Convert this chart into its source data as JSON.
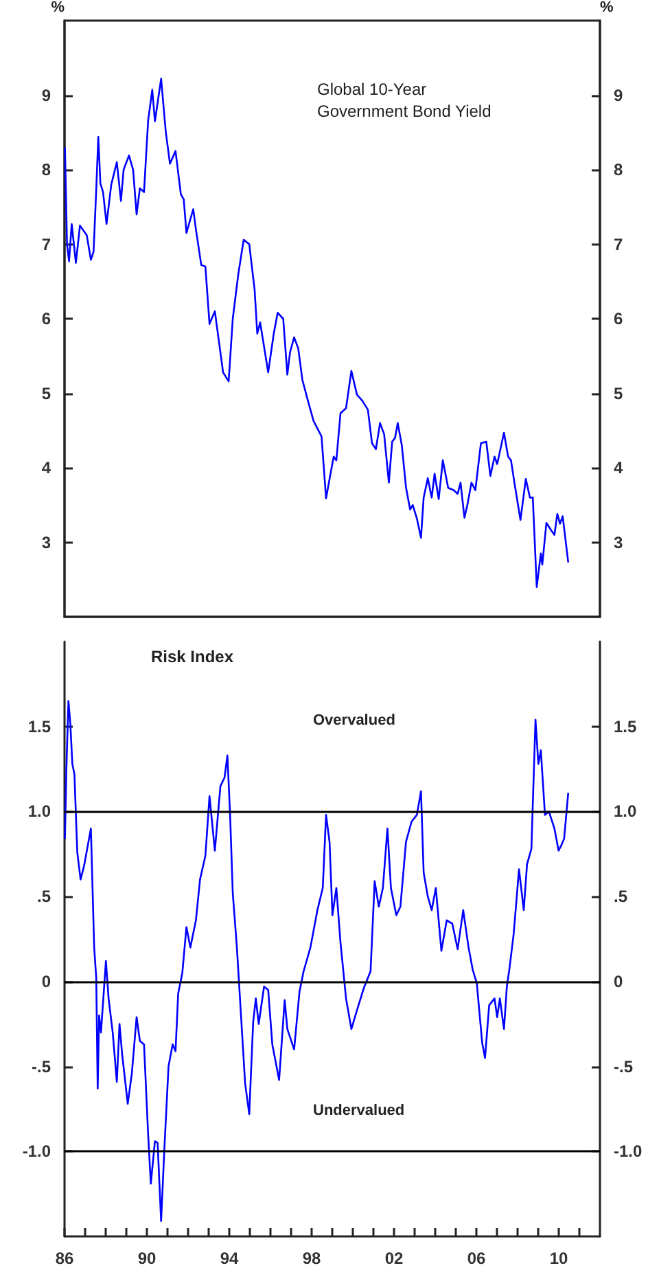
{
  "chart_data": [
    {
      "type": "line",
      "title": "Global 10-Year Government Bond Yield",
      "ylabel": "%",
      "y2label": "%",
      "xlim": [
        1986,
        2012
      ],
      "ylim": [
        2,
        10
      ],
      "yticks": [
        3,
        4,
        5,
        6,
        7,
        8,
        9
      ],
      "y2lim": [
        2,
        10
      ],
      "y2ticks": [
        3,
        4,
        5,
        6,
        7,
        8,
        9
      ],
      "tick_labels": "y",
      "marker": "none",
      "series": [
        {
          "color": "#0000ff",
          "x": [
            1986.02,
            1986.12,
            1986.22,
            1986.35,
            1986.55,
            1986.75,
            1987.08,
            1987.28,
            1987.41,
            1987.54,
            1987.64,
            1987.74,
            1987.87,
            1988.04,
            1988.27,
            1988.54,
            1988.74,
            1988.87,
            1989.13,
            1989.33,
            1989.5,
            1989.66,
            1989.86,
            1990.06,
            1990.26,
            1990.39,
            1990.69,
            1990.92,
            1991.12,
            1991.39,
            1991.65,
            1991.79,
            1991.92,
            1992.25,
            1992.38,
            1992.64,
            1992.84,
            1993.04,
            1993.3,
            1993.7,
            1993.97,
            1994.17,
            1994.44,
            1994.7,
            1994.97,
            1995.23,
            1995.36,
            1995.5,
            1995.89,
            1996.16,
            1996.35,
            1996.62,
            1996.82,
            1996.95,
            1997.15,
            1997.35,
            1997.55,
            1997.82,
            1998.09,
            1998.48,
            1998.7,
            1998.87,
            1999.07,
            1999.2,
            1999.4,
            1999.67,
            1999.93,
            2000.2,
            2000.46,
            2000.73,
            2000.93,
            2001.12,
            2001.32,
            2001.52,
            2001.75,
            2001.91,
            2002.05,
            2002.18,
            2002.38,
            2002.58,
            2002.78,
            2002.91,
            2003.11,
            2003.31,
            2003.44,
            2003.64,
            2003.83,
            2003.97,
            2004.17,
            2004.37,
            2004.63,
            2004.89,
            2005.09,
            2005.23,
            2005.42,
            2005.56,
            2005.76,
            2005.95,
            2006.22,
            2006.48,
            2006.68,
            2006.88,
            2007.01,
            2007.34,
            2007.54,
            2007.68,
            2007.87,
            2008.14,
            2008.4,
            2008.6,
            2008.74,
            2008.93,
            2009.13,
            2009.2,
            2009.4,
            2009.66,
            2009.79,
            2009.93,
            2010.06,
            2010.19,
            2010.46
          ],
          "values": [
            8.3,
            7.0,
            6.77,
            7.27,
            6.75,
            7.25,
            7.12,
            6.79,
            6.9,
            7.73,
            8.44,
            7.82,
            7.7,
            7.27,
            7.8,
            8.1,
            7.58,
            8.0,
            8.19,
            8.0,
            7.4,
            7.75,
            7.7,
            8.66,
            9.07,
            8.65,
            9.22,
            8.5,
            8.08,
            8.25,
            7.67,
            7.6,
            7.15,
            7.47,
            7.2,
            6.72,
            6.7,
            5.93,
            6.1,
            5.28,
            5.16,
            6.0,
            6.6,
            7.06,
            7.0,
            6.39,
            5.8,
            5.95,
            5.28,
            5.8,
            6.08,
            6.0,
            5.25,
            5.55,
            5.75,
            5.6,
            5.18,
            4.9,
            4.63,
            4.42,
            3.59,
            3.85,
            4.15,
            4.1,
            4.73,
            4.8,
            5.3,
            4.98,
            4.9,
            4.78,
            4.33,
            4.25,
            4.6,
            4.45,
            3.8,
            4.35,
            4.4,
            4.6,
            4.3,
            3.74,
            3.44,
            3.5,
            3.32,
            3.06,
            3.6,
            3.86,
            3.6,
            3.92,
            3.58,
            4.1,
            3.73,
            3.7,
            3.65,
            3.8,
            3.33,
            3.5,
            3.8,
            3.7,
            4.33,
            4.35,
            3.89,
            4.15,
            4.05,
            4.47,
            4.15,
            4.1,
            3.76,
            3.3,
            3.85,
            3.6,
            3.6,
            2.4,
            2.85,
            2.7,
            3.26,
            3.15,
            3.1,
            3.38,
            3.25,
            3.35,
            2.73
          ]
        }
      ]
    },
    {
      "type": "line",
      "title": "Risk Index",
      "xlim": [
        1986,
        2012
      ],
      "xticks": [
        {
          "value": 1986,
          "label": "86"
        },
        {
          "value": 1987,
          "label": null
        },
        {
          "value": 1988,
          "label": null
        },
        {
          "value": 1989,
          "label": null
        },
        {
          "value": 1990,
          "label": "90"
        },
        {
          "value": 1991,
          "label": null
        },
        {
          "value": 1992,
          "label": null
        },
        {
          "value": 1993,
          "label": null
        },
        {
          "value": 1994,
          "label": "94"
        },
        {
          "value": 1995,
          "label": null
        },
        {
          "value": 1996,
          "label": null
        },
        {
          "value": 1997,
          "label": null
        },
        {
          "value": 1998,
          "label": "98"
        },
        {
          "value": 1999,
          "label": null
        },
        {
          "value": 2000,
          "label": null
        },
        {
          "value": 2001,
          "label": null
        },
        {
          "value": 2002,
          "label": "02"
        },
        {
          "value": 2003,
          "label": null
        },
        {
          "value": 2004,
          "label": null
        },
        {
          "value": 2005,
          "label": null
        },
        {
          "value": 2006,
          "label": "06"
        },
        {
          "value": 2007,
          "label": null
        },
        {
          "value": 2008,
          "label": null
        },
        {
          "value": 2009,
          "label": null
        },
        {
          "value": 2010,
          "label": "10"
        },
        {
          "value": 2011,
          "label": null
        }
      ],
      "ylim": [
        -1.5,
        2
      ],
      "yticks": [
        {
          "value": -1,
          "label": "-1.0"
        },
        {
          "value": -0.5,
          "label": "-.5"
        },
        0,
        {
          "value": 0.5,
          "label": ".5"
        },
        {
          "value": 1,
          "label": "1.0"
        },
        1.5
      ],
      "y2lim": [
        -1.5,
        2
      ],
      "y2ticks": [
        {
          "value": -1,
          "label": "-1.0"
        },
        {
          "value": -0.5,
          "label": "-.5"
        },
        0,
        {
          "value": 0.5,
          "label": ".5"
        },
        {
          "value": 1,
          "label": "1.0"
        },
        1.5
      ],
      "marker": "none",
      "ref_lines": [
        {
          "axis": "y",
          "value": 1,
          "color": "#000000"
        },
        {
          "axis": "y",
          "value": 0,
          "color": "#000000"
        },
        {
          "axis": "y",
          "value": -1,
          "color": "#000000"
        }
      ],
      "annotations": [
        "Overvalued",
        "Undervalued"
      ],
      "series": [
        {
          "color": "#0000ff",
          "x": [
            1986.02,
            1986.09,
            1986.19,
            1986.28,
            1986.38,
            1986.48,
            1986.62,
            1986.78,
            1986.95,
            1987.28,
            1987.44,
            1987.54,
            1987.61,
            1987.68,
            1987.77,
            1988.01,
            1988.14,
            1988.34,
            1988.54,
            1988.67,
            1988.8,
            1989.07,
            1989.27,
            1989.5,
            1989.66,
            1989.86,
            1990.06,
            1990.19,
            1990.39,
            1990.52,
            1990.69,
            1990.85,
            1991.05,
            1991.25,
            1991.39,
            1991.52,
            1991.72,
            1991.92,
            1992.11,
            1992.38,
            1992.58,
            1992.84,
            1993.04,
            1993.3,
            1993.57,
            1993.77,
            1993.91,
            1994.04,
            1994.17,
            1994.37,
            1994.57,
            1994.77,
            1994.97,
            1995.16,
            1995.29,
            1995.43,
            1995.69,
            1995.89,
            1996.09,
            1996.42,
            1996.69,
            1996.82,
            1997.15,
            1997.41,
            1997.61,
            1997.94,
            1998.28,
            1998.54,
            1998.7,
            1998.87,
            1999.01,
            1999.2,
            1999.4,
            1999.67,
            1999.93,
            2000.2,
            2000.53,
            2000.86,
            2001.06,
            2001.26,
            2001.46,
            2001.68,
            2001.85,
            2002.11,
            2002.31,
            2002.58,
            2002.85,
            2003.11,
            2003.31,
            2003.44,
            2003.64,
            2003.83,
            2004.03,
            2004.3,
            2004.56,
            2004.83,
            2005.09,
            2005.36,
            2005.62,
            2005.82,
            2006.02,
            2006.28,
            2006.42,
            2006.62,
            2006.88,
            2007.01,
            2007.14,
            2007.34,
            2007.48,
            2007.61,
            2007.81,
            2008.07,
            2008.3,
            2008.46,
            2008.67,
            2008.87,
            2009.01,
            2009.13,
            2009.33,
            2009.52,
            2009.79,
            2009.99,
            2010.12,
            2010.26,
            2010.46
          ],
          "values": [
            0.84,
            1.25,
            1.65,
            1.52,
            1.28,
            1.22,
            0.76,
            0.6,
            0.68,
            0.9,
            0.2,
            0.02,
            -0.63,
            -0.2,
            -0.3,
            0.12,
            -0.1,
            -0.3,
            -0.59,
            -0.25,
            -0.43,
            -0.72,
            -0.54,
            -0.21,
            -0.35,
            -0.37,
            -0.9,
            -1.19,
            -0.94,
            -0.95,
            -1.41,
            -0.98,
            -0.5,
            -0.37,
            -0.41,
            -0.07,
            0.05,
            0.32,
            0.2,
            0.36,
            0.6,
            0.74,
            1.09,
            0.77,
            1.15,
            1.2,
            1.33,
            0.98,
            0.52,
            0.2,
            -0.2,
            -0.6,
            -0.78,
            -0.24,
            -0.1,
            -0.25,
            -0.03,
            -0.05,
            -0.37,
            -0.58,
            -0.11,
            -0.28,
            -0.4,
            -0.06,
            0.06,
            0.2,
            0.42,
            0.55,
            0.98,
            0.82,
            0.39,
            0.55,
            0.23,
            -0.1,
            -0.28,
            -0.17,
            -0.04,
            0.06,
            0.59,
            0.44,
            0.55,
            0.9,
            0.55,
            0.39,
            0.44,
            0.82,
            0.94,
            0.98,
            1.12,
            0.64,
            0.5,
            0.42,
            0.55,
            0.18,
            0.36,
            0.34,
            0.19,
            0.42,
            0.2,
            0.07,
            -0.01,
            -0.36,
            -0.45,
            -0.14,
            -0.1,
            -0.21,
            -0.1,
            -0.28,
            -0.03,
            0.08,
            0.28,
            0.66,
            0.42,
            0.69,
            0.78,
            1.54,
            1.28,
            1.36,
            0.98,
            1.0,
            0.9,
            0.77,
            0.8,
            0.84,
            1.11
          ]
        }
      ]
    }
  ]
}
